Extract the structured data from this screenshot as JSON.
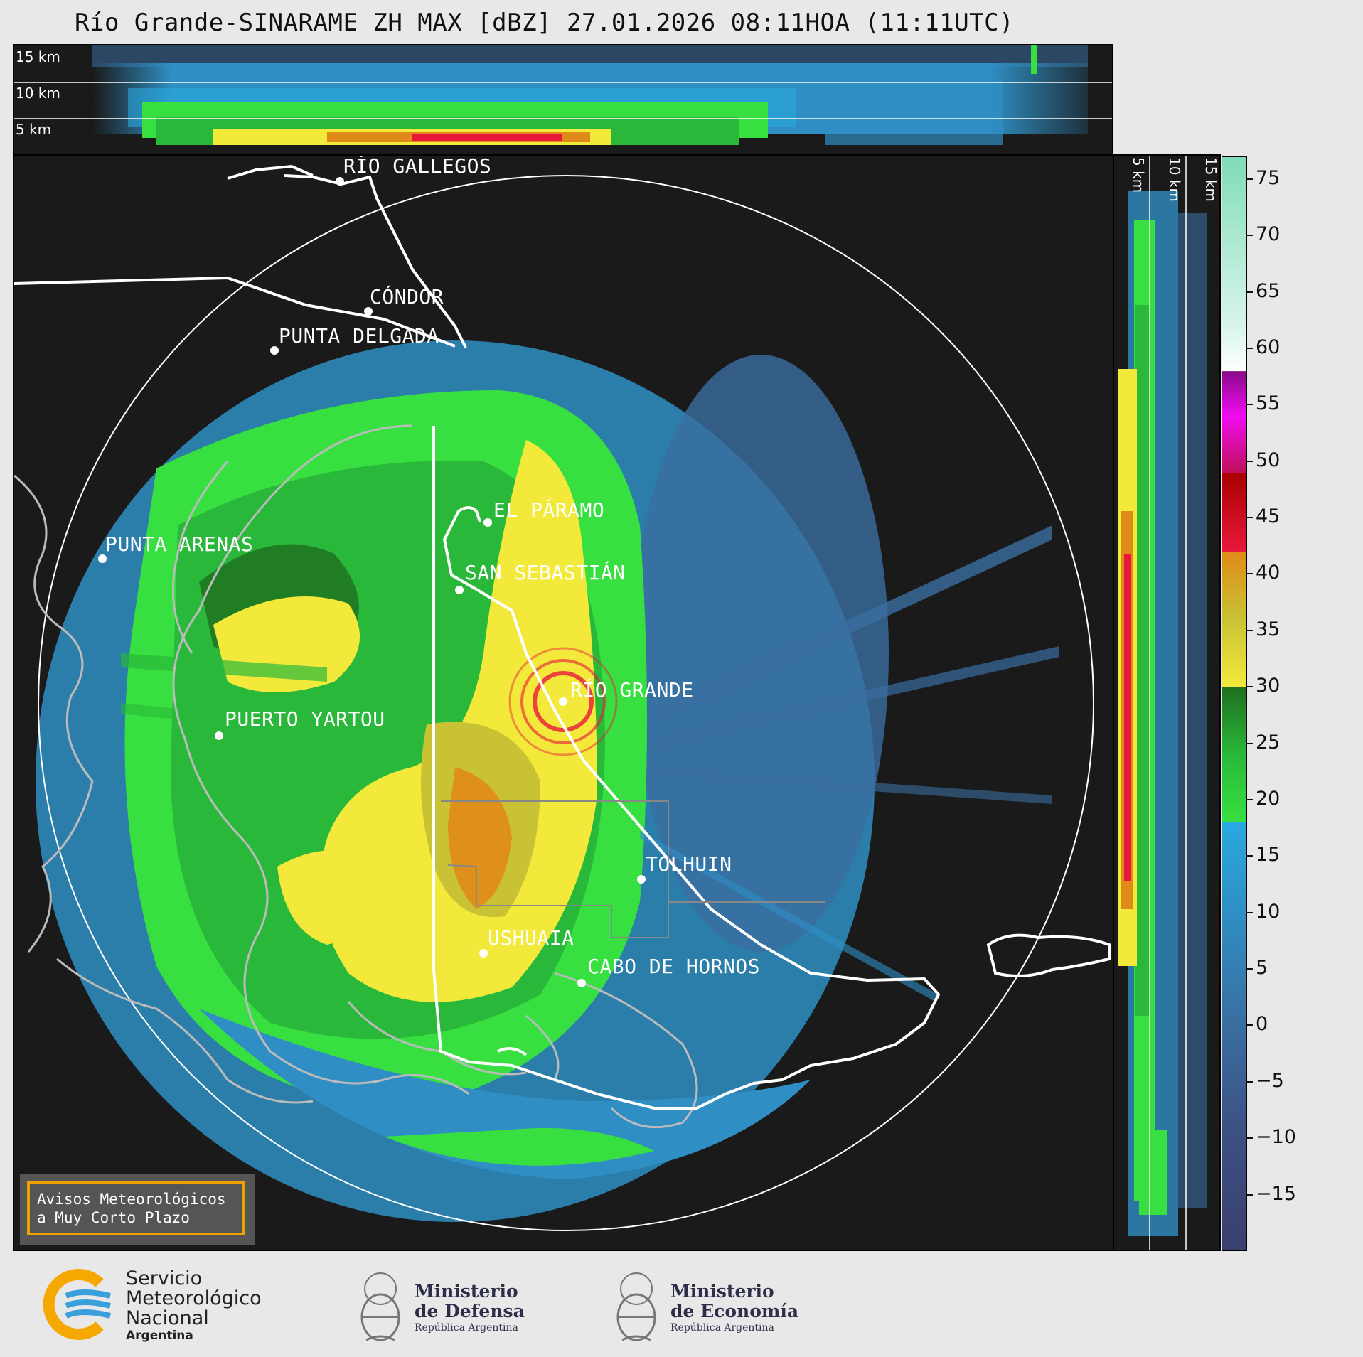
{
  "title": "Río Grande-SINARAME ZH MAX [dBZ] 27.01.2026 08:11HOA (11:11UTC)",
  "height_labels": [
    "15 km",
    "10 km",
    "5 km"
  ],
  "side_labels": [
    "5 km",
    "10 km",
    "15 km"
  ],
  "cities": [
    {
      "name": "RÍO GALLEGOS"
    },
    {
      "name": "CÓNDOR"
    },
    {
      "name": "PUNTA DELGADA"
    },
    {
      "name": "PUNTA ARENAS"
    },
    {
      "name": "EL PÁRAMO"
    },
    {
      "name": "SAN SEBASTIÁN"
    },
    {
      "name": "RÍO GRANDE"
    },
    {
      "name": "PUERTO YARTOU"
    },
    {
      "name": "TOLHUIN"
    },
    {
      "name": "USHUAIA"
    },
    {
      "name": "CABO DE HORNOS"
    }
  ],
  "colorbar": {
    "unit": "dBZ",
    "min": -20,
    "max": 77,
    "ticks": [
      "75",
      "70",
      "65",
      "60",
      "55",
      "50",
      "45",
      "40",
      "35",
      "30",
      "25",
      "20",
      "15",
      "10",
      "5",
      "0",
      "−5",
      "−10",
      "−15"
    ],
    "tick_values": [
      75,
      70,
      65,
      60,
      55,
      50,
      45,
      40,
      35,
      30,
      25,
      20,
      15,
      10,
      5,
      0,
      -5,
      -10,
      -15
    ],
    "stops": [
      {
        "v": -20,
        "c": "#3a3f6e"
      },
      {
        "v": -10,
        "c": "#3d4f82"
      },
      {
        "v": 0,
        "c": "#3a6ea0"
      },
      {
        "v": 10,
        "c": "#2f8fc4"
      },
      {
        "v": 18,
        "c": "#2aa9e0"
      },
      {
        "v": 18.01,
        "c": "#37e040"
      },
      {
        "v": 24,
        "c": "#2ab83a"
      },
      {
        "v": 30,
        "c": "#1f6e1f"
      },
      {
        "v": 30.01,
        "c": "#f2e93a"
      },
      {
        "v": 36,
        "c": "#c9c235"
      },
      {
        "v": 42,
        "c": "#e08a1a"
      },
      {
        "v": 42.01,
        "c": "#e8183a"
      },
      {
        "v": 49,
        "c": "#a80000"
      },
      {
        "v": 49.01,
        "c": "#c0105a"
      },
      {
        "v": 54,
        "c": "#f00cf0"
      },
      {
        "v": 58,
        "c": "#8a0a8a"
      },
      {
        "v": 58.01,
        "c": "#ffffff"
      },
      {
        "v": 62,
        "c": "#d8f5ea"
      },
      {
        "v": 77,
        "c": "#80dcb8"
      }
    ]
  },
  "aviso": {
    "line1": "Avisos Meteorológicos",
    "line2": "a Muy Corto Plazo"
  },
  "logos": {
    "smn": {
      "l1": "Servicio",
      "l2": "Meteorológico",
      "l3": "Nacional",
      "l4": "Argentina"
    },
    "defensa": {
      "l1": "Ministerio",
      "l2": "de Defensa",
      "l3": "República Argentina"
    },
    "economia": {
      "l1": "Ministerio",
      "l2": "de Economía",
      "l3": "República Argentina"
    }
  },
  "colors": {
    "map_bg": "#1a1a1a",
    "page_bg": "#e8e8e8",
    "accent": "#f0a000",
    "smn_blue": "#3aa0dc"
  }
}
